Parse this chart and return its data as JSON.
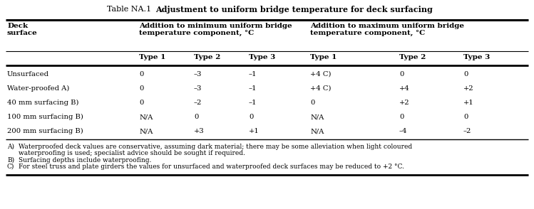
{
  "title_left": "Table NA.1",
  "title_right": "Adjustment to uniform bridge temperature for deck surfacing",
  "col_header_left": "Deck\nsurface",
  "col_header_min": "Addition to minimum uniform bridge\ntemperature component, °C",
  "col_header_max": "Addition to maximum uniform bridge\ntemperature component, °C",
  "subheaders": [
    "Type 1",
    "Type 2",
    "Type 3",
    "Type 1",
    "Type 2",
    "Type 3"
  ],
  "row_labels": [
    "Unsurfaced",
    "Water-proofed A)",
    "40 mm surfacing B)",
    "100 mm surfacing B)",
    "200 mm surfacing B)"
  ],
  "data": [
    [
      "0",
      "–3",
      "–1",
      "+4 C)",
      "0",
      "0"
    ],
    [
      "0",
      "–3",
      "–1",
      "+4 C)",
      "+4",
      "+2"
    ],
    [
      "0",
      "–2",
      "–1",
      "0",
      "+2",
      "+1"
    ],
    [
      "N/A",
      "0",
      "0",
      "N/A",
      "0",
      "0"
    ],
    [
      "N/A",
      "+3",
      "+1",
      "N/A",
      "–4",
      "–2"
    ]
  ],
  "footnote_lines": [
    [
      "A)",
      "Waterproofed deck values are conservative, assuming dark material; there may be some alleviation when light coloured"
    ],
    [
      "",
      "waterproofing is used; specialist advice should be sought if required."
    ],
    [
      "B)",
      "Surfacing depths include waterproofing."
    ],
    [
      "C)",
      "For steel truss and plate girders the values for unsurfaced and waterproofed deck surfaces may be reduced to +2 °C."
    ]
  ],
  "bg_color": "#ffffff",
  "text_color": "#000000"
}
